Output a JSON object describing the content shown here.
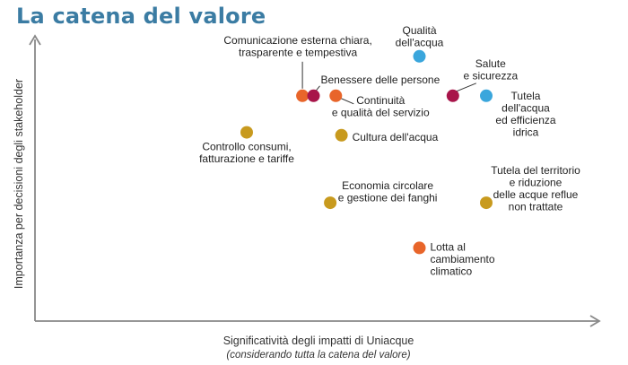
{
  "title": "La catena del valore",
  "chart_data": {
    "type": "scatter",
    "title": "La catena del valore",
    "xlabel": "Significatività degli impatti di Uniacque",
    "xlabel_sub": "(considerando tutta la catena del valore)",
    "ylabel": "Importanza per decisioni degli stakeholder",
    "xlim": [
      0,
      10
    ],
    "ylim": [
      0,
      10
    ],
    "grid": false,
    "legend": "none",
    "colors": {
      "blue": "#3aa6dc",
      "crimson": "#a8154a",
      "orange": "#e8652a",
      "gold": "#c89a1e",
      "axis": "#888888"
    },
    "points": [
      {
        "label": [
          "Qualità",
          "dell'acqua"
        ],
        "x": 6.9,
        "y": 9.4,
        "color": "#3aa6dc"
      },
      {
        "label": [
          "Salute",
          "e sicurezza"
        ],
        "x": 7.5,
        "y": 8.0,
        "color": "#a8154a"
      },
      {
        "label": [
          "Tutela",
          "dell'acqua",
          "ed efficienza",
          "idrica"
        ],
        "x": 8.1,
        "y": 8.0,
        "color": "#3aa6dc"
      },
      {
        "label": [
          "Comunicazione esterna chiara,",
          "trasparente e tempestiva"
        ],
        "x": 4.8,
        "y": 8.0,
        "color": "#e8652a"
      },
      {
        "label": [
          "Benessere delle persone"
        ],
        "x": 5.0,
        "y": 8.0,
        "color": "#a8154a"
      },
      {
        "label": [
          "Continuità",
          "e qualità del servizio"
        ],
        "x": 5.4,
        "y": 8.0,
        "color": "#e8652a"
      },
      {
        "label": [
          "Controllo consumi,",
          "fatturazione e tariffe"
        ],
        "x": 3.8,
        "y": 6.7,
        "color": "#c89a1e"
      },
      {
        "label": [
          "Cultura dell'acqua"
        ],
        "x": 5.5,
        "y": 6.6,
        "color": "#c89a1e"
      },
      {
        "label": [
          "Economia circolare",
          "e gestione dei fanghi"
        ],
        "x": 5.3,
        "y": 4.2,
        "color": "#c89a1e"
      },
      {
        "label": [
          "Tutela del territorio",
          "e riduzione",
          "delle acque reflue",
          "non trattate"
        ],
        "x": 8.1,
        "y": 4.2,
        "color": "#c89a1e"
      },
      {
        "label": [
          "Lotta al",
          "cambiamento",
          "climatico"
        ],
        "x": 6.9,
        "y": 2.6,
        "color": "#e8652a"
      }
    ]
  }
}
